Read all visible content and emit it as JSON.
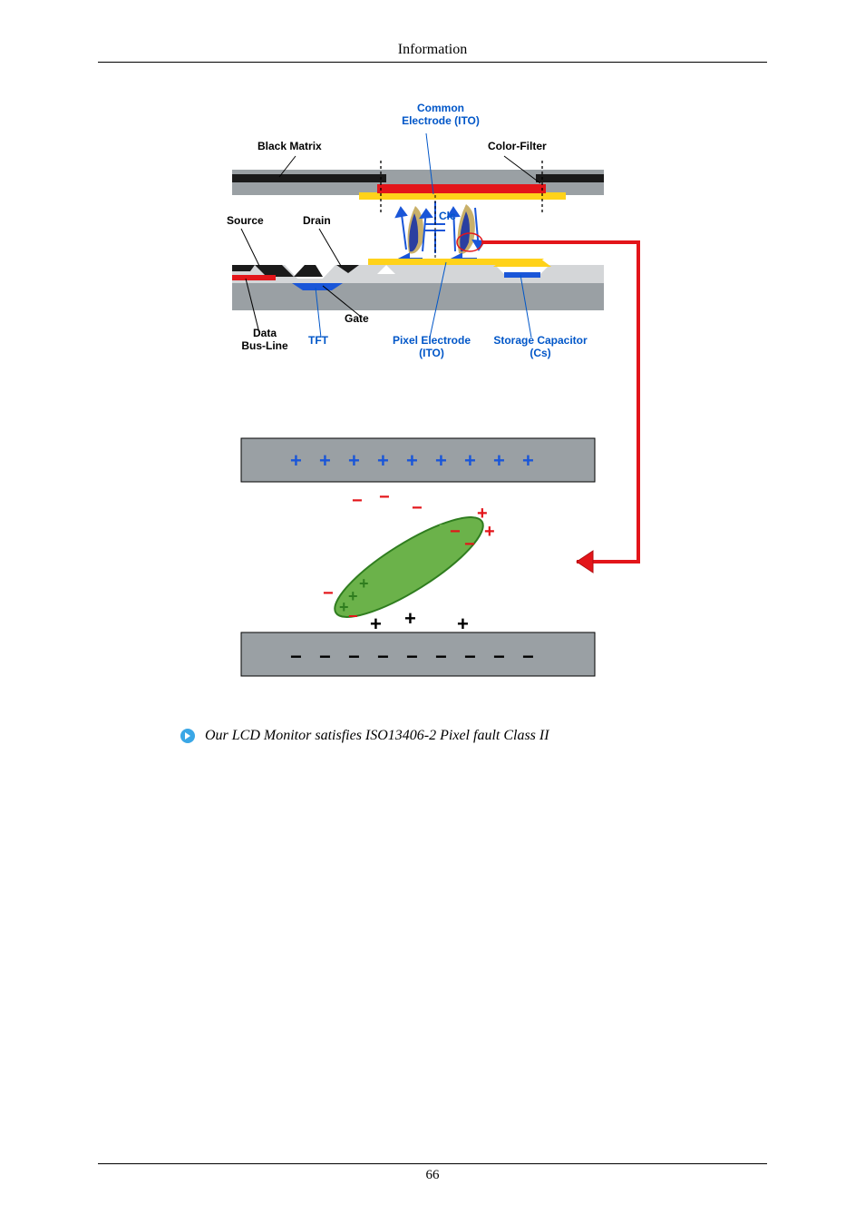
{
  "header": {
    "title": "Information"
  },
  "footer": {
    "page_number": "66"
  },
  "note": {
    "text": "Our LCD Monitor satisfies ISO13406-2 Pixel fault Class II"
  },
  "colors": {
    "substrate_gray": "#9aa0a4",
    "light_gray": "#d4d6d8",
    "black": "#000000",
    "black_matrix": "#1a1a1a",
    "red": "#e3151a",
    "yellow": "#ffd21a",
    "blue": "#1a56d8",
    "blue_label": "#0056c8",
    "green_crystal": "#6bb24a",
    "green_crystal_edge": "#2f7d1f",
    "arrow_red": "#e3151a",
    "arrow_red_dark": "#b00f12",
    "dash": "#000000",
    "plus_blue": "#1a56d8",
    "plus_black": "#000000",
    "minus_red": "#e3151a",
    "minus_black": "#000000",
    "bullet_bg": "#3aa7e6",
    "bullet_arrow": "#ffffff",
    "lc_blob_deep": "#2a3fa0",
    "lc_blob_light": "#c9b06a",
    "circle_red": "#e3151a"
  },
  "labels": {
    "common_electrode": "Common\nElectrode (ITO)",
    "black_matrix": "Black Matrix",
    "color_filter": "Color-Filter",
    "source": "Source",
    "drain": "Drain",
    "clc": "Clc",
    "gate": "Gate",
    "data_bus": "Data\nBus-Line",
    "tft": "TFT",
    "pixel_electrode": "Pixel Electrode\n(ITO)",
    "storage_cap": "Storage Capacitor\n(Cs)"
  },
  "diagram": {
    "plus_row_count": 9,
    "minus_row_count": 9,
    "plus_size": 22,
    "minus_size": 22
  }
}
